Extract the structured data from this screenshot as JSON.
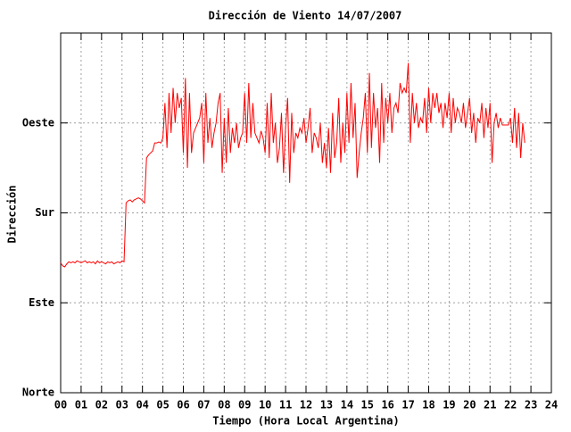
{
  "chart_data": {
    "type": "line",
    "title": "Dirección de Viento 14/07/2007",
    "x_label": "Tiempo (Hora Local Argentina)",
    "y_label": "Dirección",
    "color": "#ff0000",
    "grid": true,
    "xlim": [
      0,
      24
    ],
    "xticks": [
      {
        "value": 0,
        "label": "00"
      },
      {
        "value": 1,
        "label": "01"
      },
      {
        "value": 2,
        "label": "02"
      },
      {
        "value": 3,
        "label": "03"
      },
      {
        "value": 4,
        "label": "04"
      },
      {
        "value": 5,
        "label": "05"
      },
      {
        "value": 6,
        "label": "06"
      },
      {
        "value": 7,
        "label": "07"
      },
      {
        "value": 8,
        "label": "08"
      },
      {
        "value": 9,
        "label": "09"
      },
      10,
      11,
      12,
      13,
      14,
      15,
      16,
      17,
      18,
      19,
      20,
      21,
      22,
      23,
      24
    ],
    "ylim": [
      0,
      360
    ],
    "yticks": [
      {
        "value": 0,
        "label": "Norte"
      },
      {
        "value": 90,
        "label": "Este"
      },
      {
        "value": 180,
        "label": "Sur"
      },
      {
        "value": 270,
        "label": "Oeste"
      }
    ],
    "x": [
      0,
      0.1,
      0.2,
      0.3,
      0.4,
      0.5,
      0.6,
      0.7,
      0.8,
      0.9,
      1,
      1.1,
      1.2,
      1.3,
      1.4,
      1.5,
      1.6,
      1.7,
      1.8,
      1.9,
      2,
      2.1,
      2.2,
      2.3,
      2.4,
      2.5,
      2.6,
      2.7,
      2.8,
      2.9,
      3,
      3.1,
      3.2,
      3.3,
      3.4,
      3.5,
      3.6,
      3.7,
      3.8,
      3.9,
      4,
      4.1,
      4.2,
      4.3,
      4.4,
      4.5,
      4.6,
      4.7,
      4.8,
      4.9,
      5,
      5.1,
      5.2,
      5.3,
      5.4,
      5.5,
      5.6,
      5.7,
      5.8,
      5.9,
      6,
      6.1,
      6.2,
      6.3,
      6.4,
      6.5,
      6.6,
      6.7,
      6.8,
      6.9,
      7,
      7.1,
      7.2,
      7.3,
      7.4,
      7.5,
      7.6,
      7.7,
      7.8,
      7.9,
      8,
      8.1,
      8.2,
      8.3,
      8.4,
      8.5,
      8.6,
      8.7,
      8.8,
      8.9,
      9,
      9.1,
      9.2,
      9.3,
      9.4,
      9.5,
      9.6,
      9.7,
      9.8,
      9.9,
      10,
      10.1,
      10.2,
      10.3,
      10.4,
      10.5,
      10.6,
      10.7,
      10.8,
      10.9,
      11,
      11.1,
      11.2,
      11.3,
      11.4,
      11.5,
      11.6,
      11.7,
      11.8,
      11.9,
      12,
      12.1,
      12.2,
      12.3,
      12.4,
      12.5,
      12.6,
      12.7,
      12.8,
      12.9,
      13,
      13.1,
      13.2,
      13.3,
      13.4,
      13.5,
      13.6,
      13.7,
      13.8,
      13.9,
      14,
      14.1,
      14.2,
      14.3,
      14.4,
      14.5,
      14.6,
      14.7,
      14.8,
      14.9,
      15,
      15.1,
      15.2,
      15.3,
      15.4,
      15.5,
      15.6,
      15.7,
      15.8,
      15.9,
      16,
      16.1,
      16.2,
      16.3,
      16.4,
      16.5,
      16.6,
      16.7,
      16.8,
      16.9,
      17,
      17.1,
      17.2,
      17.3,
      17.4,
      17.5,
      17.6,
      17.7,
      17.8,
      17.9,
      18,
      18.1,
      18.2,
      18.3,
      18.4,
      18.5,
      18.6,
      18.7,
      18.8,
      18.9,
      19,
      19.1,
      19.2,
      19.3,
      19.4,
      19.5,
      19.6,
      19.7,
      19.8,
      19.9,
      20,
      20.1,
      20.2,
      20.3,
      20.4,
      20.5,
      20.6,
      20.7,
      20.8,
      20.9,
      21,
      21.1,
      21.2,
      21.3,
      21.4,
      21.5,
      21.6,
      21.7,
      21.8,
      21.9,
      22,
      22.1,
      22.2,
      22.3,
      22.4,
      22.5,
      22.6,
      22.7
    ],
    "values": [
      130,
      127,
      126,
      129,
      131,
      130,
      131,
      130,
      132,
      131,
      130,
      131,
      132,
      130,
      131,
      130,
      131,
      129,
      132,
      130,
      131,
      130,
      129,
      131,
      130,
      131,
      129,
      130,
      131,
      130,
      132,
      131,
      190,
      192,
      193,
      191,
      193,
      194,
      195,
      194,
      192,
      190,
      235,
      238,
      240,
      242,
      250,
      250,
      251,
      250,
      255,
      290,
      245,
      300,
      260,
      305,
      270,
      300,
      285,
      295,
      240,
      315,
      225,
      300,
      240,
      260,
      265,
      270,
      275,
      290,
      230,
      300,
      250,
      275,
      245,
      260,
      270,
      290,
      300,
      220,
      275,
      230,
      285,
      240,
      265,
      250,
      270,
      245,
      255,
      260,
      300,
      250,
      310,
      255,
      290,
      260,
      255,
      250,
      262,
      255,
      240,
      290,
      235,
      300,
      250,
      270,
      230,
      245,
      280,
      220,
      265,
      295,
      210,
      280,
      240,
      260,
      255,
      265,
      260,
      275,
      250,
      265,
      285,
      240,
      260,
      255,
      245,
      270,
      230,
      250,
      225,
      265,
      220,
      280,
      235,
      250,
      295,
      230,
      270,
      240,
      300,
      250,
      310,
      255,
      290,
      215,
      240,
      260,
      275,
      300,
      240,
      320,
      245,
      300,
      265,
      285,
      230,
      310,
      250,
      295,
      270,
      300,
      260,
      285,
      290,
      280,
      310,
      300,
      305,
      300,
      330,
      250,
      300,
      270,
      290,
      265,
      275,
      270,
      295,
      260,
      305,
      270,
      300,
      285,
      300,
      280,
      290,
      265,
      290,
      275,
      300,
      260,
      295,
      270,
      285,
      280,
      270,
      290,
      265,
      280,
      295,
      260,
      280,
      250,
      275,
      270,
      290,
      255,
      285,
      265,
      290,
      230,
      270,
      280,
      265,
      275,
      268,
      268,
      268,
      268,
      275,
      250,
      285,
      245,
      280,
      235,
      270,
      250
    ]
  }
}
